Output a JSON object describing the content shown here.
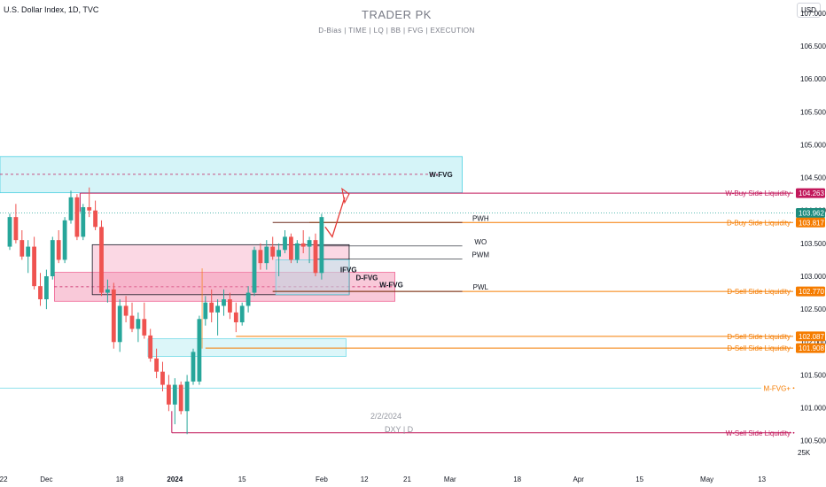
{
  "header": {
    "symbol": "U.S. Dollar Index, 1D, TVC",
    "title": "TRADER PK",
    "subtitle": "D-Bias | TIME  |  LQ  |  BB  |  FVG  | EXECUTION",
    "currency_button": "USD"
  },
  "notes": {
    "date": "2/2/2024",
    "symbol": "DXY | D",
    "volume_tick": "25K"
  },
  "colors": {
    "up": "#26a69a",
    "down": "#ef5350",
    "magenta": "#c2185b",
    "orange": "#f57c00",
    "maroon": "#6d2b1f",
    "cyan_fill": "#b2ebf2",
    "pink_fill": "#f8bbd0",
    "teal_badge": "#1e8c7e"
  },
  "chart_data": {
    "type": "candlestick",
    "title": "TRADER PK",
    "ylim": [
      100.2,
      107.2
    ],
    "y_ticks": [
      100.5,
      101.0,
      101.5,
      102.0,
      102.5,
      103.0,
      103.5,
      104.0,
      104.5,
      105.0,
      105.5,
      106.0,
      106.5,
      107.0
    ],
    "y_tick_labels": [
      "100.500",
      "101.000",
      "101.500",
      "102.000",
      "102.500",
      "103.000",
      "103.500",
      "104.000",
      "104.500",
      "105.000",
      "105.500",
      "106.000",
      "106.500",
      "107.000"
    ],
    "x_ticks": [
      {
        "label": "22",
        "index": -1
      },
      {
        "label": "Dec",
        "index": 6
      },
      {
        "label": "18",
        "index": 18
      },
      {
        "label": "2024",
        "index": 27
      },
      {
        "label": "15",
        "index": 38
      },
      {
        "label": "Feb",
        "index": 51
      },
      {
        "label": "12",
        "index": 58
      },
      {
        "label": "21",
        "index": 65
      },
      {
        "label": "Mar",
        "index": 72
      },
      {
        "label": "18",
        "index": 83
      },
      {
        "label": "Apr",
        "index": 93
      },
      {
        "label": "15",
        "index": 103
      },
      {
        "label": "May",
        "index": 114
      },
      {
        "label": "13",
        "index": 123
      }
    ],
    "candles": [
      [
        103.45,
        103.95,
        103.4,
        103.9
      ],
      [
        103.9,
        104.1,
        103.5,
        103.55
      ],
      [
        103.55,
        103.7,
        103.25,
        103.3
      ],
      [
        103.3,
        103.55,
        103.05,
        103.45
      ],
      [
        103.45,
        103.6,
        102.8,
        102.85
      ],
      [
        102.85,
        103.05,
        102.55,
        102.65
      ],
      [
        102.65,
        103.1,
        102.5,
        103.0
      ],
      [
        103.0,
        103.6,
        102.95,
        103.55
      ],
      [
        103.55,
        103.7,
        103.2,
        103.25
      ],
      [
        103.25,
        103.9,
        103.2,
        103.85
      ],
      [
        103.85,
        104.3,
        103.8,
        104.2
      ],
      [
        104.2,
        104.25,
        103.55,
        103.6
      ],
      [
        103.6,
        104.1,
        103.55,
        104.05
      ],
      [
        104.05,
        104.35,
        103.9,
        104.0
      ],
      [
        104.0,
        104.15,
        103.7,
        103.75
      ],
      [
        103.75,
        103.85,
        102.7,
        102.75
      ],
      [
        102.75,
        102.95,
        102.6,
        102.8
      ],
      [
        102.8,
        102.9,
        101.9,
        102.0
      ],
      [
        102.0,
        102.65,
        101.85,
        102.55
      ],
      [
        102.55,
        102.7,
        102.3,
        102.4
      ],
      [
        102.4,
        102.6,
        102.15,
        102.2
      ],
      [
        102.2,
        102.45,
        102.0,
        102.35
      ],
      [
        102.35,
        102.6,
        102.05,
        102.1
      ],
      [
        102.1,
        102.2,
        101.7,
        101.75
      ],
      [
        101.75,
        101.9,
        101.45,
        101.55
      ],
      [
        101.55,
        101.7,
        101.25,
        101.35
      ],
      [
        101.35,
        101.5,
        100.95,
        101.05
      ],
      [
        101.05,
        101.45,
        100.75,
        101.35
      ],
      [
        101.35,
        101.4,
        100.9,
        100.95
      ],
      [
        100.95,
        101.5,
        100.6,
        101.4
      ],
      [
        101.4,
        101.9,
        101.35,
        101.85
      ],
      [
        101.4,
        102.4,
        101.35,
        102.35
      ],
      [
        102.35,
        102.7,
        102.25,
        102.6
      ],
      [
        102.6,
        102.8,
        102.3,
        102.45
      ],
      [
        102.45,
        102.65,
        102.1,
        102.55
      ],
      [
        102.55,
        102.8,
        102.4,
        102.65
      ],
      [
        102.65,
        102.75,
        102.35,
        102.45
      ],
      [
        102.45,
        102.6,
        102.15,
        102.3
      ],
      [
        102.3,
        102.6,
        102.25,
        102.55
      ],
      [
        102.55,
        102.85,
        102.45,
        102.75
      ],
      [
        102.75,
        103.45,
        102.7,
        103.4
      ],
      [
        103.4,
        103.5,
        103.1,
        103.2
      ],
      [
        103.2,
        103.55,
        103.1,
        103.45
      ],
      [
        103.45,
        103.6,
        103.25,
        103.3
      ],
      [
        103.3,
        103.5,
        103.0,
        103.4
      ],
      [
        103.4,
        103.7,
        103.35,
        103.6
      ],
      [
        103.6,
        103.65,
        103.2,
        103.25
      ],
      [
        103.25,
        103.55,
        103.2,
        103.5
      ],
      [
        103.5,
        103.7,
        103.35,
        103.45
      ],
      [
        103.45,
        103.6,
        103.2,
        103.55
      ],
      [
        103.55,
        103.65,
        103.0,
        103.05
      ],
      [
        103.05,
        103.95,
        102.95,
        103.9
      ]
    ],
    "price_labels": [
      {
        "label": "W-Buy Side Liquidity",
        "price": 104.263,
        "value": "104.263",
        "color": "#c2185b"
      },
      {
        "label": "",
        "price": 103.962,
        "value": "103.962",
        "color": "#1e8c7e"
      },
      {
        "label": "D-Buy Side Liquidity",
        "price": 103.817,
        "value": "103.817",
        "color": "#f57c00"
      },
      {
        "label": "D-Sell Side Liquidity",
        "price": 102.77,
        "value": "102.770",
        "color": "#f57c00"
      },
      {
        "label": "D-Sell Side Liquidity",
        "price": 102.087,
        "value": "102.087",
        "color": "#f57c00"
      },
      {
        "label": "D-Sell Side Liquidity",
        "price": 101.908,
        "value": "101.908",
        "color": "#f57c00"
      }
    ],
    "plain_right_labels": [
      {
        "label": "M-FVG+",
        "price": 101.3,
        "color": "#f57c00"
      },
      {
        "label": "W-Sell Side Liquidity",
        "price": 100.62,
        "color": "#c2185b"
      }
    ],
    "zone_labels": [
      "W-FVG",
      "IFVG",
      "D-FVG",
      "W-FVG"
    ],
    "level_labels": [
      "PWH",
      "WO",
      "PWM",
      "PWL"
    ]
  }
}
